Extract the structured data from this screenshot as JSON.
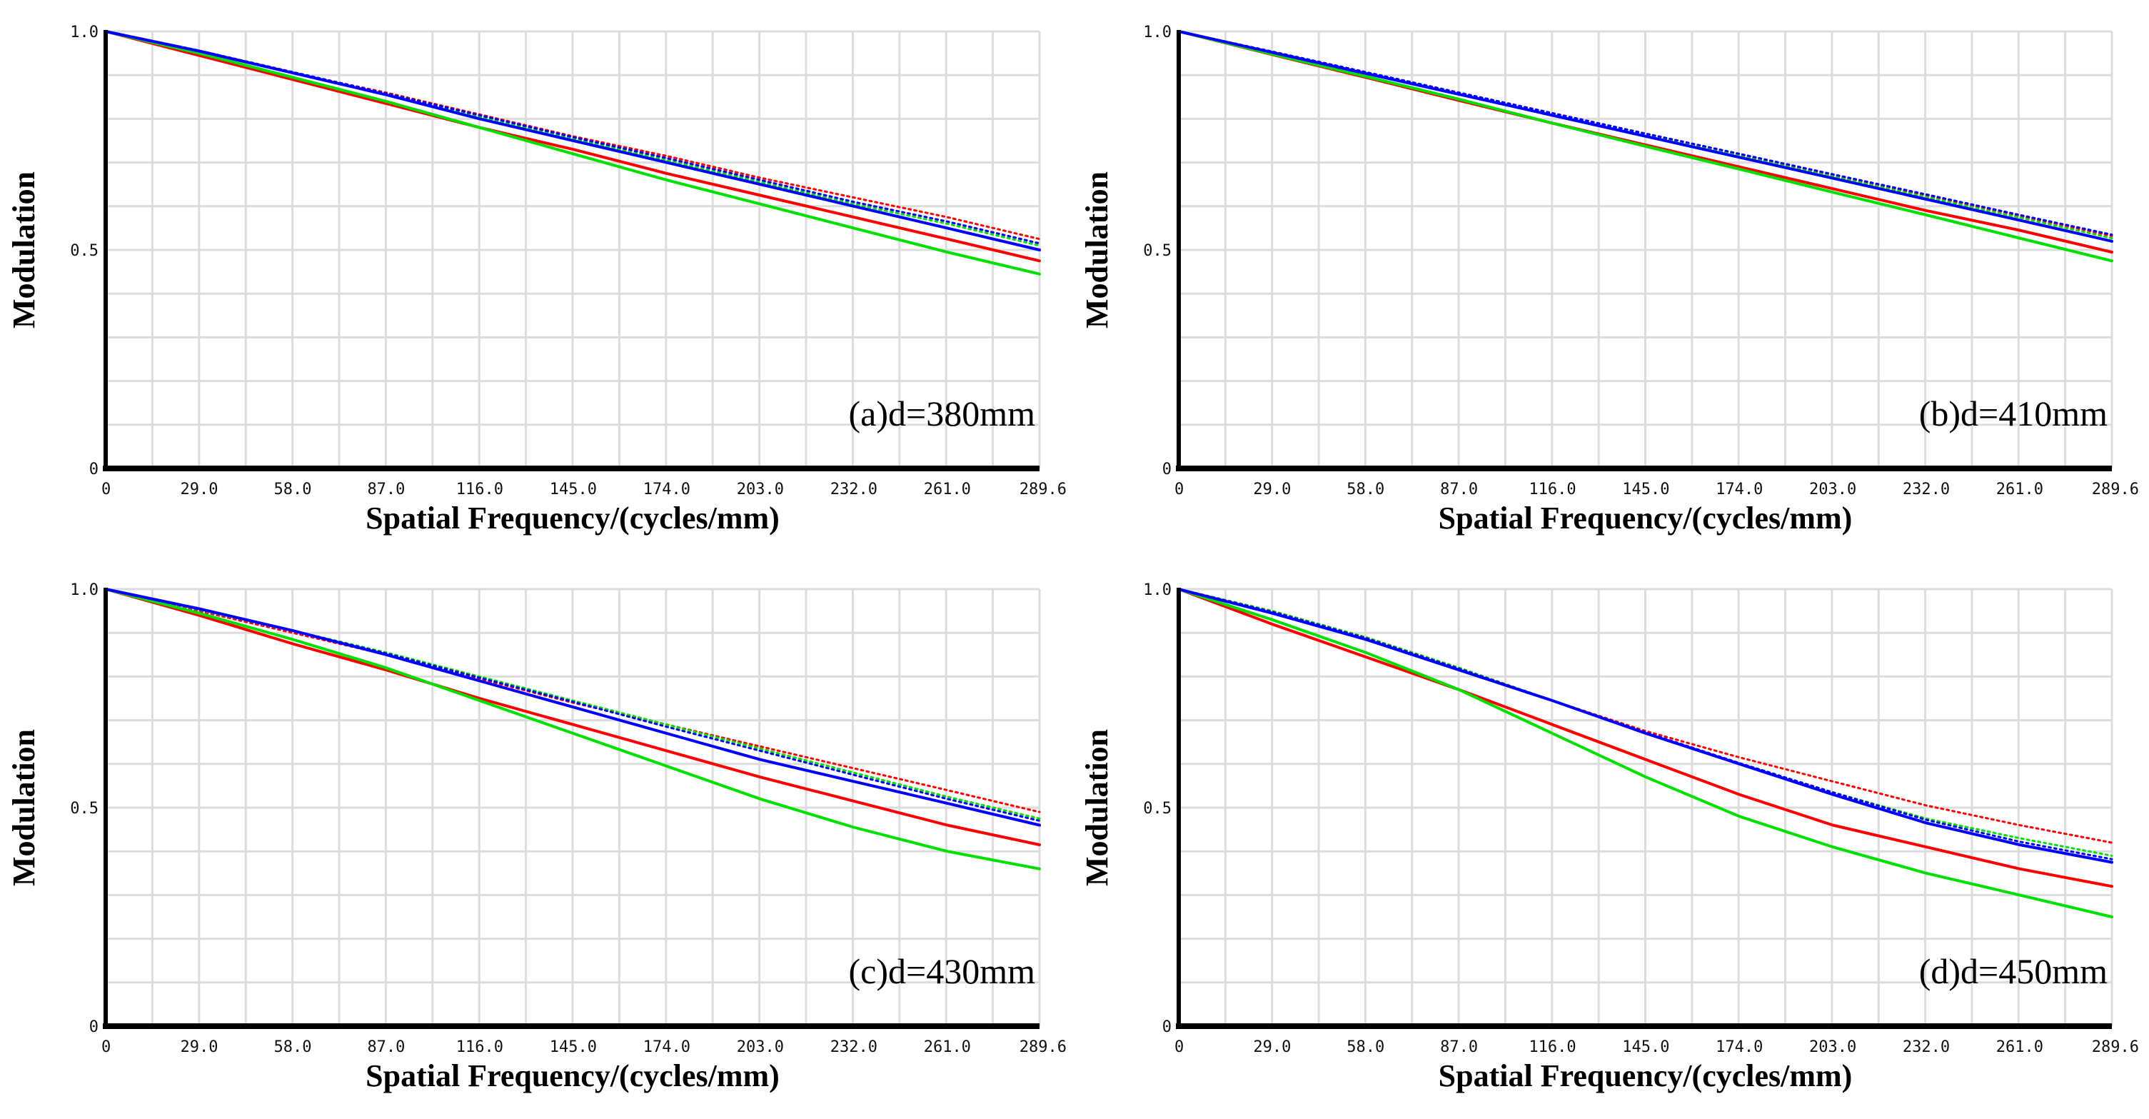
{
  "colors": {
    "red": "#ff0000",
    "green": "#00e000",
    "blue": "#0000ff",
    "grid": "#dcdcdc",
    "axis": "#000000"
  },
  "chart_data": [
    {
      "type": "line",
      "title": "(a)d=380mm",
      "xlabel": "Spatial Frequency/(cycles/mm)",
      "ylabel": "Modulation",
      "xlim": [
        0,
        289.6
      ],
      "ylim": [
        0,
        1.0
      ],
      "xticks": [
        "0",
        "29.0",
        "58.0",
        "87.0",
        "116.0",
        "145.0",
        "174.0",
        "203.0",
        "232.0",
        "261.0",
        "289.6"
      ],
      "yticks": [
        "0",
        "0.5",
        "1.0"
      ],
      "grid": true,
      "x": [
        0,
        29,
        58,
        87,
        116,
        145,
        174,
        203,
        232,
        261,
        289.6
      ],
      "series": [
        {
          "name": "red-solid",
          "color": "red",
          "dashed": false,
          "values": [
            1.0,
            0.945,
            0.89,
            0.835,
            0.78,
            0.73,
            0.675,
            0.625,
            0.575,
            0.525,
            0.475
          ]
        },
        {
          "name": "red-dotted",
          "color": "red",
          "dashed": true,
          "values": [
            1.0,
            0.955,
            0.905,
            0.86,
            0.81,
            0.76,
            0.715,
            0.665,
            0.62,
            0.575,
            0.525
          ]
        },
        {
          "name": "green-solid",
          "color": "green",
          "dashed": false,
          "values": [
            1.0,
            0.95,
            0.895,
            0.84,
            0.78,
            0.72,
            0.66,
            0.605,
            0.55,
            0.495,
            0.445
          ]
        },
        {
          "name": "green-dotted",
          "color": "green",
          "dashed": true,
          "values": [
            1.0,
            0.955,
            0.905,
            0.855,
            0.805,
            0.755,
            0.705,
            0.655,
            0.605,
            0.56,
            0.51
          ]
        },
        {
          "name": "blue-solid",
          "color": "blue",
          "dashed": false,
          "values": [
            1.0,
            0.955,
            0.905,
            0.855,
            0.8,
            0.75,
            0.7,
            0.65,
            0.6,
            0.55,
            0.5
          ]
        },
        {
          "name": "blue-dotted",
          "color": "blue",
          "dashed": true,
          "values": [
            1.0,
            0.956,
            0.907,
            0.858,
            0.808,
            0.758,
            0.71,
            0.66,
            0.61,
            0.565,
            0.515
          ]
        }
      ]
    },
    {
      "type": "line",
      "title": "(b)d=410mm",
      "xlabel": "Spatial Frequency/(cycles/mm)",
      "ylabel": "Modulation",
      "xlim": [
        0,
        289.6
      ],
      "ylim": [
        0,
        1.0
      ],
      "xticks": [
        "0",
        "29.0",
        "58.0",
        "87.0",
        "116.0",
        "145.0",
        "174.0",
        "203.0",
        "232.0",
        "261.0",
        "289.6"
      ],
      "yticks": [
        "0",
        "0.5",
        "1.0"
      ],
      "grid": true,
      "x": [
        0,
        29,
        58,
        87,
        116,
        145,
        174,
        203,
        232,
        261,
        289.6
      ],
      "series": [
        {
          "name": "red-solid",
          "color": "red",
          "dashed": false,
          "values": [
            1.0,
            0.947,
            0.895,
            0.842,
            0.79,
            0.74,
            0.69,
            0.64,
            0.59,
            0.545,
            0.495
          ]
        },
        {
          "name": "red-dotted",
          "color": "red",
          "dashed": true,
          "values": [
            1.0,
            0.953,
            0.905,
            0.857,
            0.81,
            0.763,
            0.717,
            0.67,
            0.625,
            0.578,
            0.532
          ]
        },
        {
          "name": "green-solid",
          "color": "green",
          "dashed": false,
          "values": [
            1.0,
            0.948,
            0.897,
            0.845,
            0.79,
            0.737,
            0.685,
            0.632,
            0.58,
            0.527,
            0.475
          ]
        },
        {
          "name": "green-dotted",
          "color": "green",
          "dashed": true,
          "values": [
            1.0,
            0.953,
            0.905,
            0.857,
            0.809,
            0.762,
            0.715,
            0.668,
            0.621,
            0.574,
            0.527
          ]
        },
        {
          "name": "blue-solid",
          "color": "blue",
          "dashed": false,
          "values": [
            1.0,
            0.952,
            0.904,
            0.856,
            0.808,
            0.76,
            0.712,
            0.664,
            0.616,
            0.568,
            0.52
          ]
        },
        {
          "name": "blue-dotted",
          "color": "blue",
          "dashed": true,
          "values": [
            1.0,
            0.954,
            0.907,
            0.86,
            0.813,
            0.766,
            0.72,
            0.673,
            0.627,
            0.58,
            0.535
          ]
        }
      ]
    },
    {
      "type": "line",
      "title": "(c)d=430mm",
      "xlabel": "Spatial Frequency/(cycles/mm)",
      "ylabel": "Modulation",
      "xlim": [
        0,
        289.6
      ],
      "ylim": [
        0,
        1.0
      ],
      "xticks": [
        "0",
        "29.0",
        "58.0",
        "87.0",
        "116.0",
        "145.0",
        "174.0",
        "203.0",
        "232.0",
        "261.0",
        "289.6"
      ],
      "yticks": [
        "0",
        "0.5",
        "1.0"
      ],
      "grid": true,
      "x": [
        0,
        29,
        58,
        87,
        116,
        145,
        174,
        203,
        232,
        261,
        289.6
      ],
      "series": [
        {
          "name": "red-solid",
          "color": "red",
          "dashed": false,
          "values": [
            1.0,
            0.94,
            0.875,
            0.815,
            0.75,
            0.69,
            0.63,
            0.57,
            0.515,
            0.46,
            0.415
          ]
        },
        {
          "name": "red-dotted",
          "color": "red",
          "dashed": true,
          "values": [
            1.0,
            0.95,
            0.9,
            0.85,
            0.795,
            0.74,
            0.69,
            0.64,
            0.59,
            0.54,
            0.49
          ]
        },
        {
          "name": "green-solid",
          "color": "green",
          "dashed": false,
          "values": [
            1.0,
            0.945,
            0.885,
            0.82,
            0.745,
            0.67,
            0.595,
            0.52,
            0.455,
            0.4,
            0.36
          ]
        },
        {
          "name": "green-dotted",
          "color": "green",
          "dashed": true,
          "values": [
            1.0,
            0.953,
            0.905,
            0.855,
            0.8,
            0.745,
            0.69,
            0.635,
            0.58,
            0.525,
            0.475
          ]
        },
        {
          "name": "blue-solid",
          "color": "blue",
          "dashed": false,
          "values": [
            1.0,
            0.955,
            0.905,
            0.85,
            0.79,
            0.73,
            0.67,
            0.61,
            0.56,
            0.51,
            0.46
          ]
        },
        {
          "name": "blue-dotted",
          "color": "blue",
          "dashed": true,
          "values": [
            1.0,
            0.954,
            0.905,
            0.853,
            0.797,
            0.742,
            0.685,
            0.63,
            0.575,
            0.52,
            0.47
          ]
        }
      ]
    },
    {
      "type": "line",
      "title": "(d)d=450mm",
      "xlabel": "Spatial Frequency/(cycles/mm)",
      "ylabel": "Modulation",
      "xlim": [
        0,
        289.6
      ],
      "ylim": [
        0,
        1.0
      ],
      "xticks": [
        "0",
        "29.0",
        "58.0",
        "87.0",
        "116.0",
        "145.0",
        "174.0",
        "203.0",
        "232.0",
        "261.0",
        "289.6"
      ],
      "yticks": [
        "0",
        "0.5",
        "1.0"
      ],
      "grid": true,
      "x": [
        0,
        29,
        58,
        87,
        116,
        145,
        174,
        203,
        232,
        261,
        289.6
      ],
      "series": [
        {
          "name": "red-solid",
          "color": "red",
          "dashed": false,
          "values": [
            1.0,
            0.92,
            0.845,
            0.77,
            0.69,
            0.61,
            0.53,
            0.46,
            0.41,
            0.36,
            0.32
          ]
        },
        {
          "name": "red-dotted",
          "color": "red",
          "dashed": true,
          "values": [
            1.0,
            0.95,
            0.89,
            0.82,
            0.745,
            0.675,
            0.615,
            0.56,
            0.505,
            0.46,
            0.42
          ]
        },
        {
          "name": "green-solid",
          "color": "green",
          "dashed": false,
          "values": [
            1.0,
            0.93,
            0.855,
            0.77,
            0.67,
            0.57,
            0.48,
            0.41,
            0.35,
            0.3,
            0.25
          ]
        },
        {
          "name": "green-dotted",
          "color": "green",
          "dashed": true,
          "values": [
            1.0,
            0.95,
            0.89,
            0.82,
            0.745,
            0.67,
            0.6,
            0.535,
            0.475,
            0.43,
            0.39
          ]
        },
        {
          "name": "blue-solid",
          "color": "blue",
          "dashed": false,
          "values": [
            1.0,
            0.945,
            0.885,
            0.815,
            0.745,
            0.67,
            0.6,
            0.53,
            0.465,
            0.415,
            0.375
          ]
        },
        {
          "name": "blue-dotted",
          "color": "blue",
          "dashed": true,
          "values": [
            1.0,
            0.948,
            0.888,
            0.818,
            0.745,
            0.672,
            0.602,
            0.535,
            0.472,
            0.422,
            0.382
          ]
        }
      ]
    }
  ]
}
